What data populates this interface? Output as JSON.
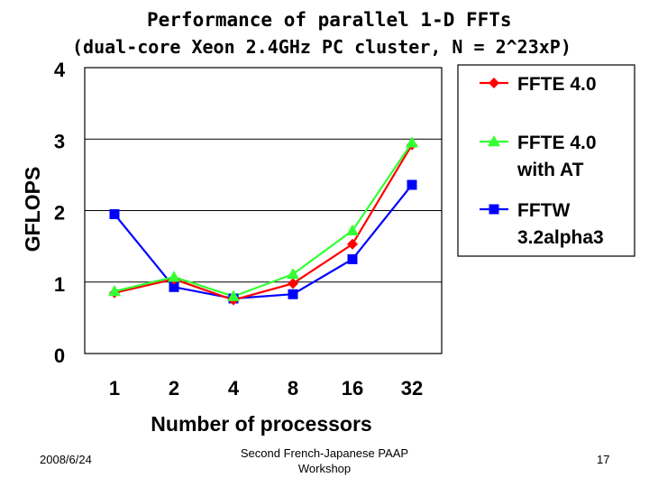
{
  "chart_data": {
    "type": "line",
    "title": "Performance of parallel 1-D FFTs",
    "subtitle": "(dual-core Xeon 2.4GHz PC cluster, N = 2^23xP)",
    "xlabel": "Number of processors",
    "ylabel": "GFLOPS",
    "categories": [
      "1",
      "2",
      "4",
      "8",
      "16",
      "32"
    ],
    "ylim": [
      0,
      4
    ],
    "yticks": [
      "0",
      "1",
      "2",
      "3",
      "4"
    ],
    "grid": true,
    "legend_position": "right",
    "series": [
      {
        "name": "FFTE 4.0",
        "legend_lines": [
          "FFTE 4.0"
        ],
        "color": "#ff0000",
        "marker": "diamond",
        "values": [
          0.85,
          1.04,
          0.75,
          0.98,
          1.53,
          2.92
        ]
      },
      {
        "name": "FFTE 4.0 with AT",
        "legend_lines": [
          "FFTE 4.0",
          "with AT"
        ],
        "color": "#33ff33",
        "marker": "triangle",
        "values": [
          0.87,
          1.07,
          0.8,
          1.11,
          1.72,
          2.95
        ]
      },
      {
        "name": "FFTW 3.2alpha3",
        "legend_lines": [
          "FFTW",
          "3.2alpha3"
        ],
        "color": "#0000ff",
        "marker": "square",
        "values": [
          1.95,
          0.93,
          0.77,
          0.83,
          1.32,
          2.36
        ]
      }
    ]
  },
  "footer": {
    "date": "2008/6/24",
    "center_line1": "Second French-Japanese PAAP",
    "center_line2": "Workshop",
    "page": "17"
  }
}
